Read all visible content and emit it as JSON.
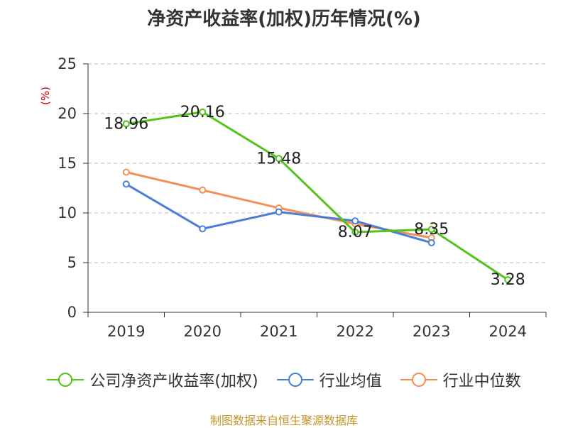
{
  "chart_data": {
    "type": "line",
    "title": "净资产收益率(加权)历年情况(%)",
    "unit_label": "(%)",
    "categories": [
      "2019",
      "2020",
      "2021",
      "2022",
      "2023",
      "2024"
    ],
    "ylim": [
      0,
      25
    ],
    "yticks": [
      0,
      5,
      10,
      15,
      20,
      25
    ],
    "grid": true,
    "legend_position": "bottom",
    "series": [
      {
        "name": "公司净资产收益率(加权)",
        "color": "#52c41a",
        "values": [
          18.96,
          20.16,
          15.48,
          8.07,
          8.35,
          3.28
        ],
        "labels": [
          "18.96",
          "20.16",
          "15.48",
          "8.07",
          "8.35",
          "3.28"
        ]
      },
      {
        "name": "行业均值",
        "color": "#4a7fd6",
        "values": [
          12.9,
          8.4,
          10.1,
          9.2,
          7.0,
          null
        ]
      },
      {
        "name": "行业中位数",
        "color": "#f58f55",
        "values": [
          14.1,
          12.3,
          10.5,
          8.9,
          7.5,
          null
        ]
      }
    ],
    "source": "制图数据来自恒生聚源数据库"
  }
}
